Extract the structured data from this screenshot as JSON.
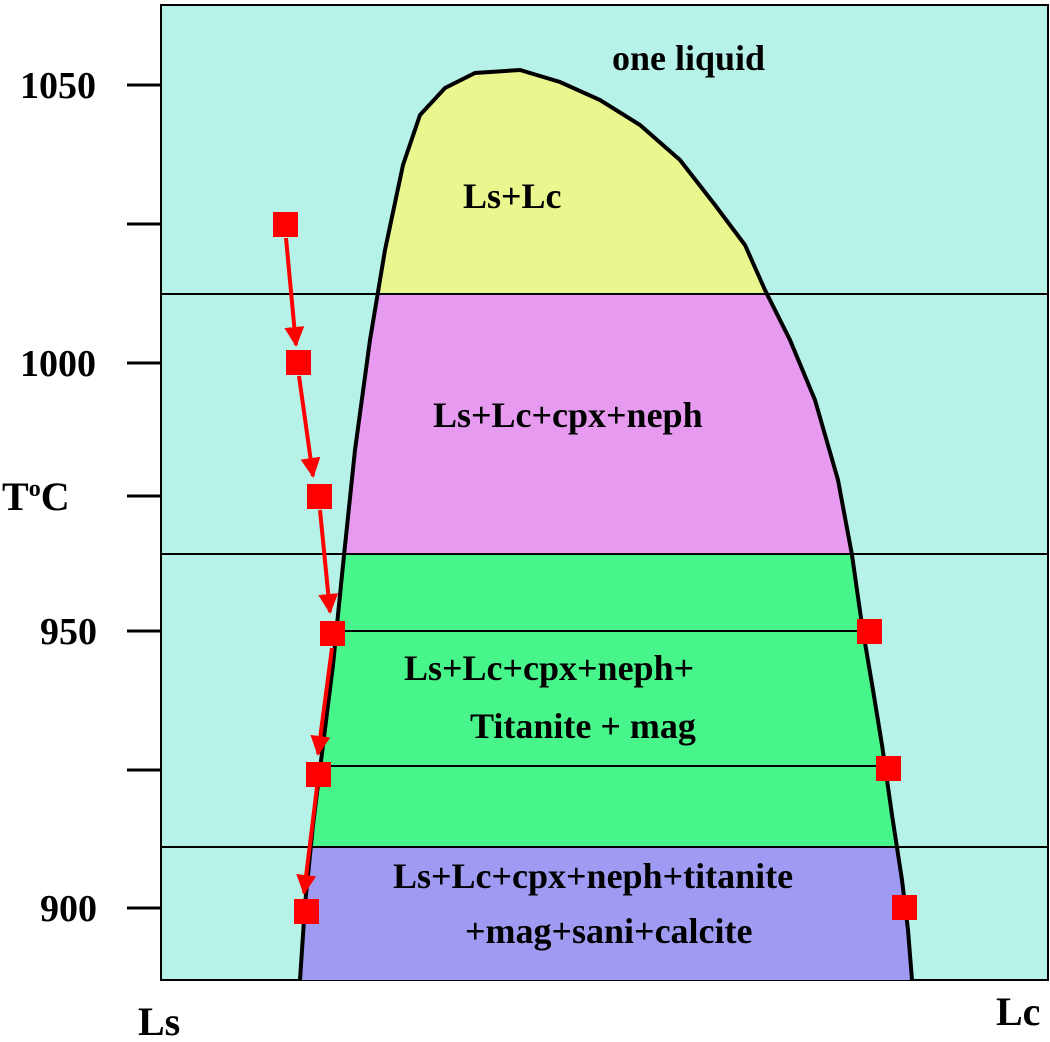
{
  "colors": {
    "one_liquid": "#b6f2e8",
    "ls_lc": "#eaf78e",
    "ls_lc_cpx_neph": "#e79bf0",
    "titanite_mag": "#48f58b",
    "calcite": "#9f9bf2",
    "outline": "#000000",
    "path": "#ff0000"
  },
  "axes": {
    "y_label_main": "T",
    "y_label_sup": "o",
    "y_label_unit": "C",
    "x_left_label": "Ls",
    "x_right_label": "Lc",
    "y_ticks": [
      "1050",
      "1000",
      "950",
      "900"
    ]
  },
  "regions": {
    "one_liquid": "one liquid",
    "ls_lc": "Ls+Lc",
    "ls_lc_cpx_neph": "Ls+Lc+cpx+neph",
    "titanite_mag_line1": "Ls+Lc+cpx+neph+",
    "titanite_mag_line2": "Titanite + mag",
    "calcite_line1": "Ls+Lc+cpx+neph+titanite",
    "calcite_line2": "+mag+sani+calcite"
  },
  "arrow_path": {
    "temperatures_C": [
      1025,
      1000,
      975,
      950,
      925,
      900
    ],
    "left_limb_markers_C": [
      950,
      925,
      900
    ],
    "right_limb_markers_C": [
      950,
      925,
      900
    ]
  }
}
